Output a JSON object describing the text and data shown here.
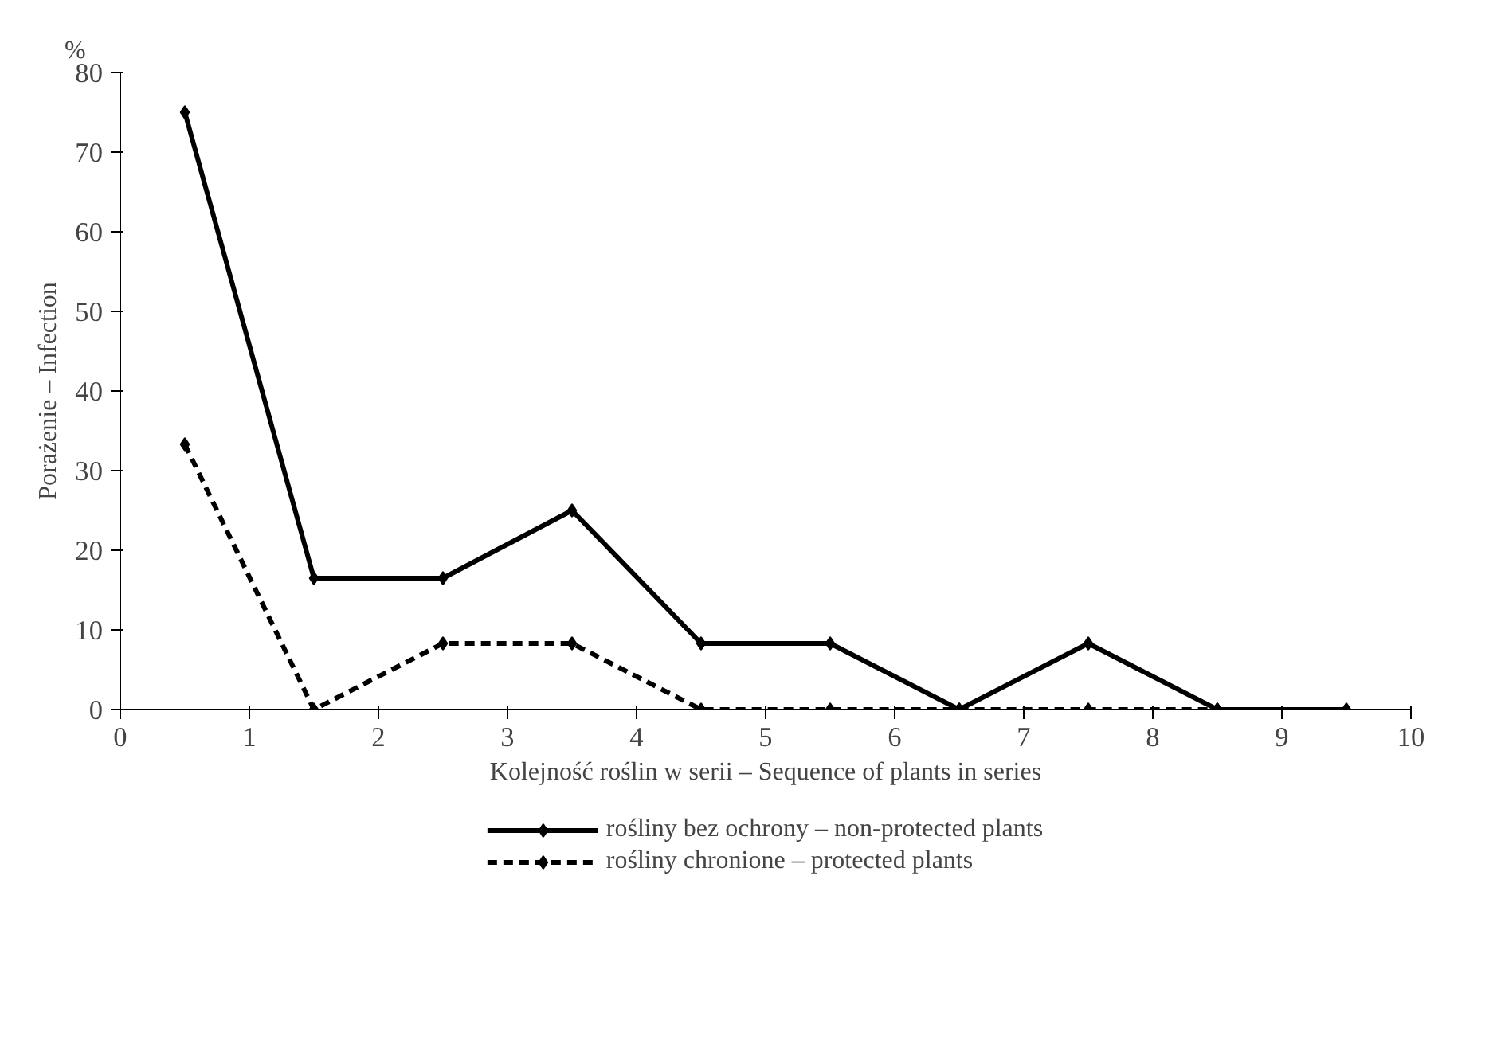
{
  "chart_data": {
    "type": "line",
    "xlabel": "Kolejność roślin w serii – Sequence of plants in series",
    "ylabel": "Porażenie – Infection",
    "annotations": [
      "%"
    ],
    "x": [
      0.5,
      1.5,
      2.5,
      3.5,
      4.5,
      5.5,
      6.5,
      7.5,
      8.5,
      9.5
    ],
    "series": [
      {
        "name": "rośliny bez ochrony – non-protected plants",
        "color": "#000000",
        "line_style": "solid",
        "values": [
          75,
          16.5,
          16.5,
          25,
          8.3,
          8.3,
          0,
          8.3,
          0,
          0
        ]
      },
      {
        "name": "rośliny chronione – protected plants",
        "color": "#000000",
        "line_style": "dashed",
        "values": [
          33.3,
          0,
          8.3,
          8.3,
          0,
          0,
          0,
          0,
          0,
          null
        ]
      }
    ],
    "xlim": [
      0,
      10
    ],
    "xticks": [
      0,
      1,
      2,
      3,
      4,
      5,
      6,
      7,
      8,
      9,
      10
    ],
    "ylim": [
      0,
      80
    ],
    "yticks": [
      0,
      10,
      20,
      30,
      40,
      50,
      60,
      70,
      80
    ],
    "grid": false,
    "legend": "bottom",
    "marker": "diamond"
  }
}
